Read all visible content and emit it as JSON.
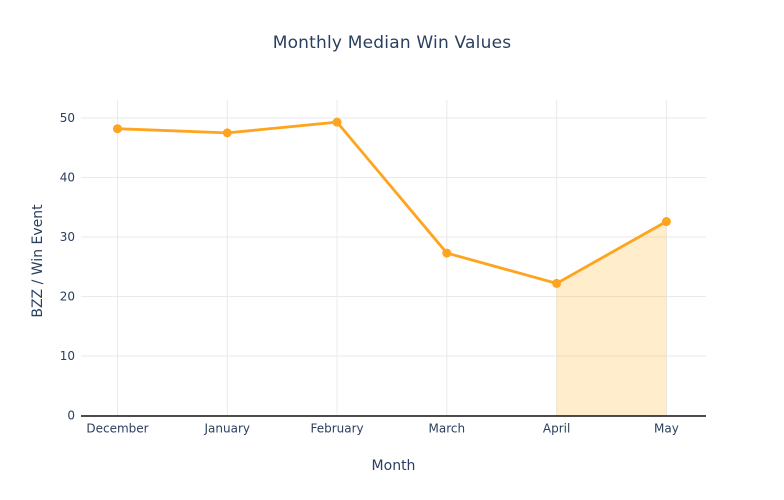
{
  "chart_data": {
    "type": "line",
    "title": "Monthly Median Win Values",
    "xlabel": "Month",
    "ylabel": "BZZ / Win Event",
    "categories": [
      "December",
      "January",
      "February",
      "March",
      "April",
      "May"
    ],
    "values": [
      48.2,
      47.5,
      49.3,
      27.3,
      22.2,
      32.6
    ],
    "ylim": [
      0,
      52.9
    ],
    "yticks": [
      0,
      10,
      20,
      30,
      40,
      50
    ],
    "grid": true,
    "legend": false,
    "highlight_region": {
      "from_category": "April",
      "to_category": "May",
      "from_index": 4,
      "to_index": 5,
      "fill_color": "#ffa500",
      "fill_opacity": 0.2
    },
    "colors": {
      "line": "#ffa41e",
      "marker": "#ffa41e",
      "gridline": "#eaeaea",
      "axis_line": "#333333",
      "text": "#2a3f5f",
      "background": "#ffffff"
    }
  }
}
